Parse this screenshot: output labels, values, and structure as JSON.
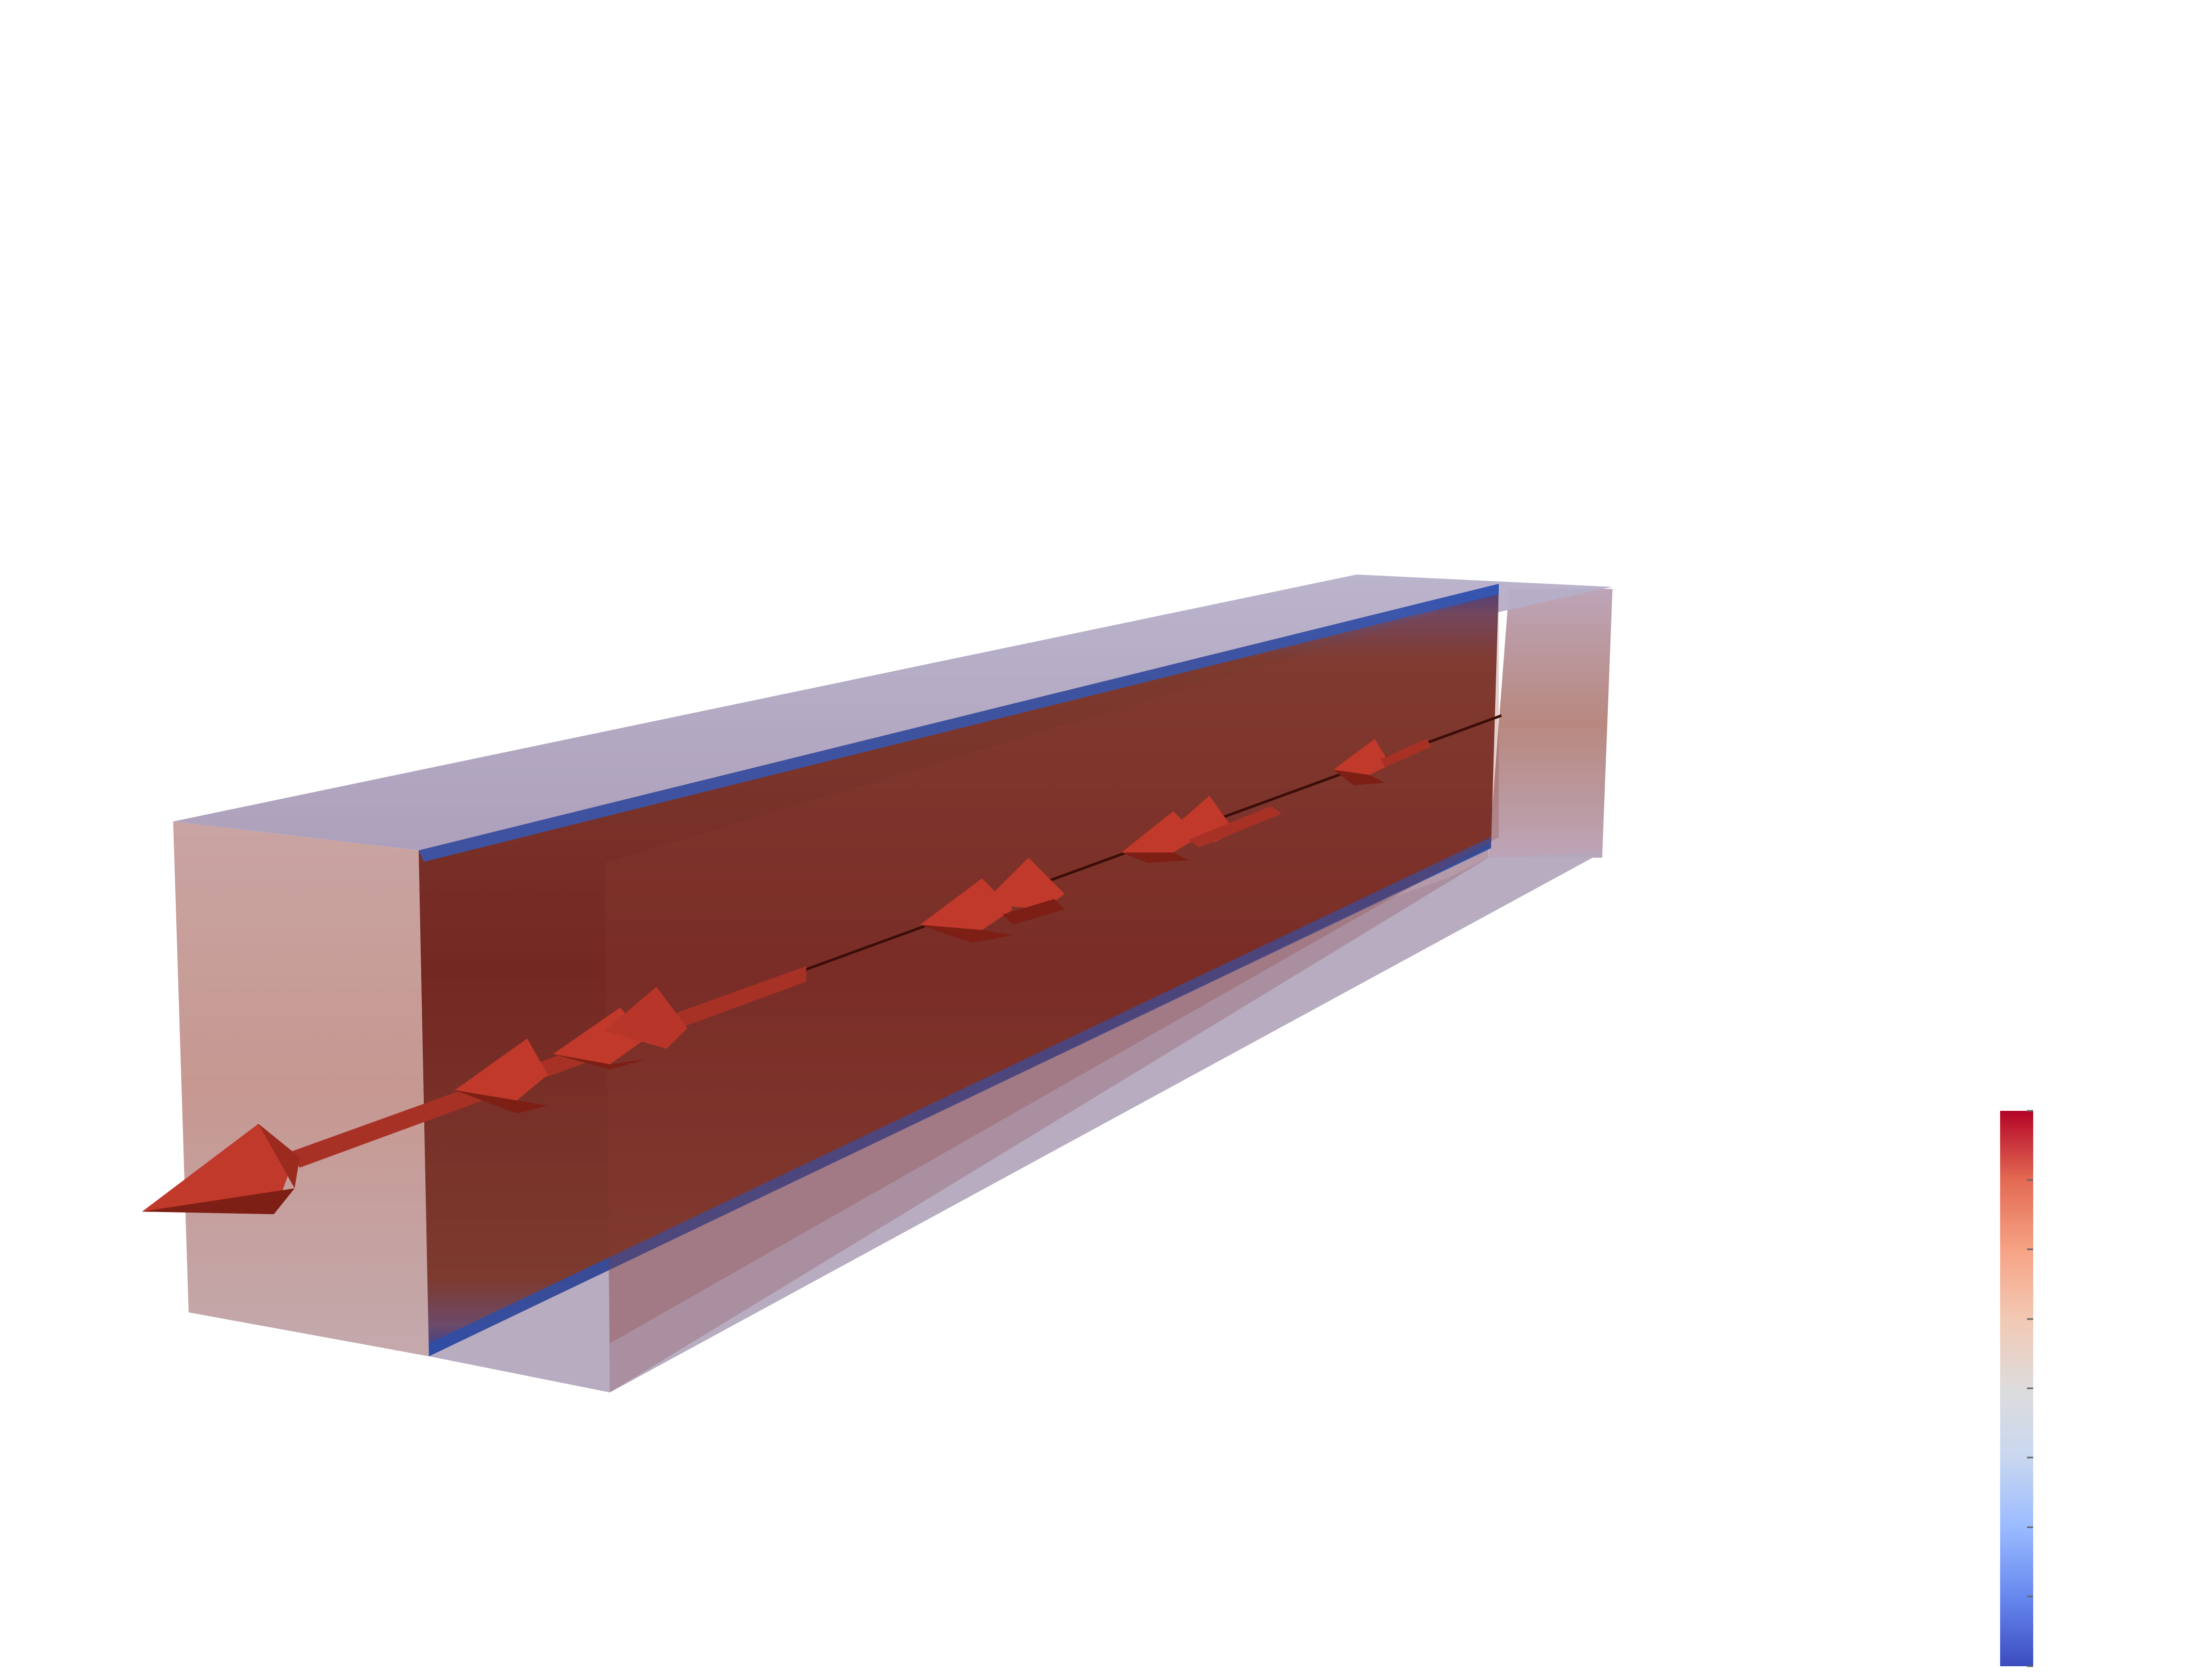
{
  "scene": {
    "background_color": "#ffffff",
    "colormap": {
      "name": "coolwarm",
      "stops": [
        "#3b4cc0",
        "#6788ee",
        "#9abbff",
        "#c9d7f0",
        "#dddcdc",
        "#f2c9b4",
        "#f6a385",
        "#e36a53",
        "#b40426"
      ],
      "tick_count": 9
    },
    "slab_color": "#7a2a22",
    "edge_color": "#2d4fa8",
    "glyph_color": "#c0392b",
    "glyph_shadow_color": "#7d1f14",
    "streamline_color": "#3b0d08"
  }
}
